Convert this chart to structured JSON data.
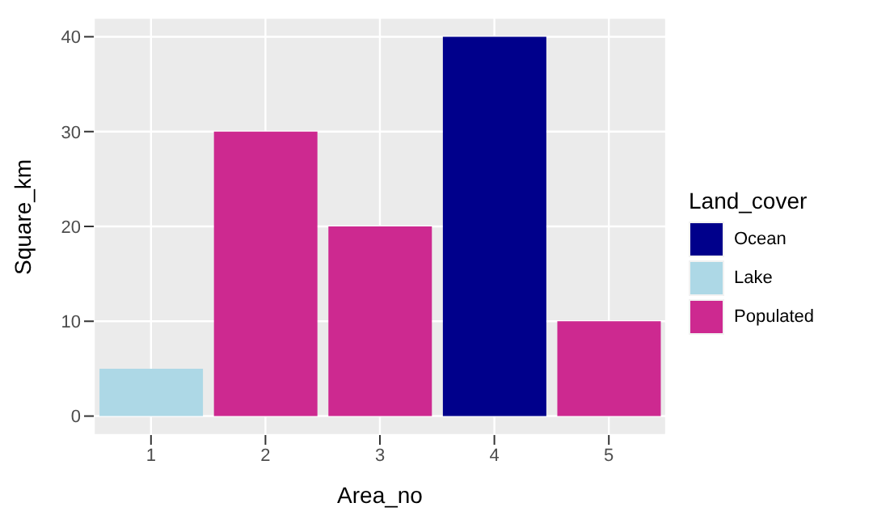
{
  "chart_data": {
    "type": "bar",
    "xlabel": "Area_no",
    "ylabel": "Square_km",
    "legend_title": "Land_cover",
    "categories": [
      "1",
      "2",
      "3",
      "4",
      "5"
    ],
    "stacked": true,
    "series": [
      {
        "name": "Ocean",
        "color": "#00008b",
        "values": [
          null,
          null,
          null,
          40,
          null
        ]
      },
      {
        "name": "Lake",
        "color": "#add8e6",
        "values": [
          5,
          null,
          null,
          null,
          null
        ]
      },
      {
        "name": "Populated",
        "color": "#cd2990",
        "values": [
          null,
          30,
          20,
          null,
          10
        ]
      }
    ],
    "ylim": [
      -2,
      42
    ],
    "yticks": [
      0,
      10,
      20,
      30,
      40
    ],
    "grid": true,
    "legend": "right"
  }
}
